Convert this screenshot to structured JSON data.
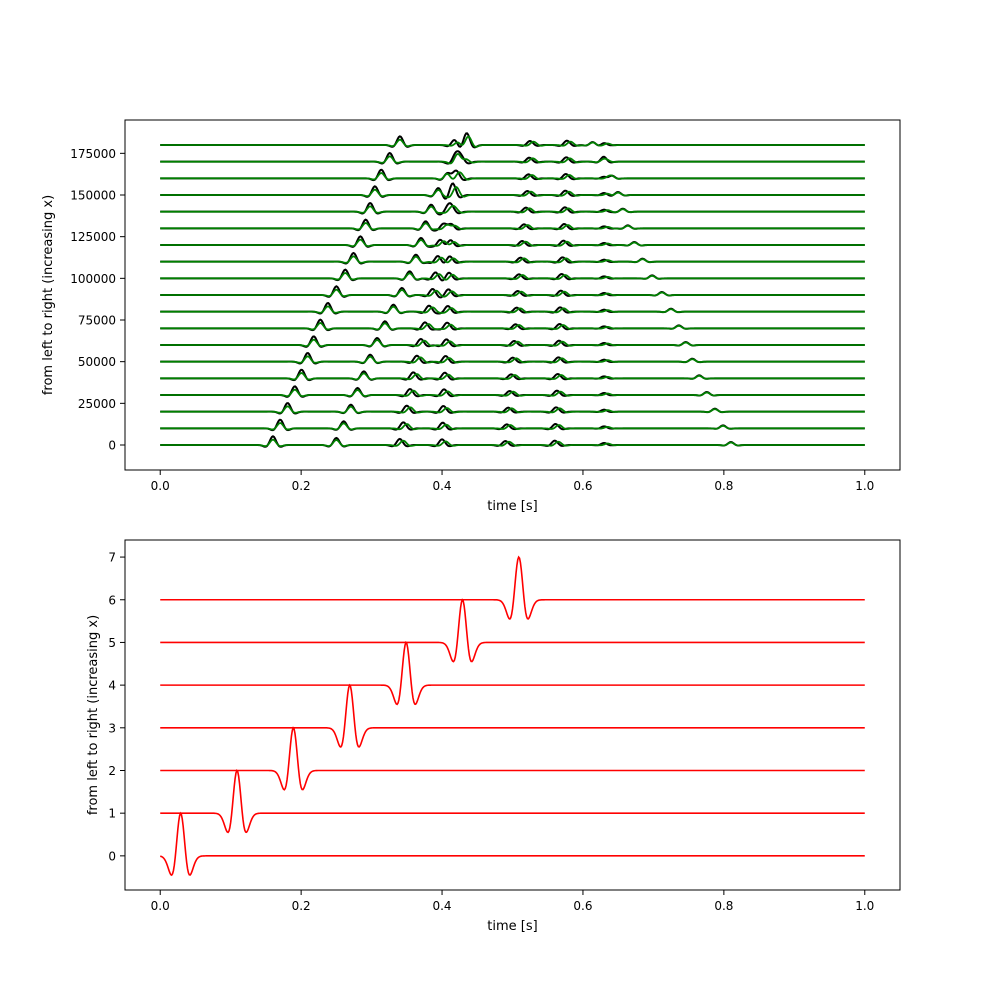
{
  "colors": {
    "observed": "#000000",
    "modeled": "#008000",
    "wavelet": "#ff0000"
  },
  "chart_data": [
    {
      "type": "line",
      "description_key": "seismic-traces",
      "xlabel": "time [s]",
      "ylabel": "from left to right (increasing x)",
      "xlim": [
        -0.05,
        1.05
      ],
      "ylim": [
        -15000,
        195000
      ],
      "xticks": [
        0.0,
        0.2,
        0.4,
        0.6,
        0.8,
        1.0
      ],
      "xtick_labels": [
        "0.0",
        "0.2",
        "0.4",
        "0.6",
        "0.8",
        "1.0"
      ],
      "yticks": [
        0,
        25000,
        50000,
        75000,
        100000,
        125000,
        150000,
        175000
      ],
      "ytick_labels": [
        "0",
        "25000",
        "50000",
        "75000",
        "100000",
        "125000",
        "150000",
        "175000"
      ],
      "trace_x_range": [
        0.0,
        1.0
      ],
      "trace_offsets": [
        0,
        10000,
        20000,
        30000,
        40000,
        50000,
        60000,
        70000,
        80000,
        90000,
        100000,
        110000,
        120000,
        130000,
        140000,
        150000,
        160000,
        170000,
        180000
      ],
      "series": [
        {
          "color_key": "observed",
          "arrivals": [
            {
              "t0": 0.16,
              "slope": 1e-06,
              "amp": 5200,
              "width": 0.01
            },
            {
              "t0": 0.25,
              "slope": 1e-06,
              "amp": 4200,
              "width": 0.01
            },
            {
              "t0": 0.34,
              "slope": 5e-07,
              "amp": 3600,
              "width": 0.01
            },
            {
              "t0": 0.4,
              "slope": 1e-07,
              "amp": 3400,
              "width": 0.01
            },
            {
              "t0": 0.49,
              "slope": 2e-07,
              "amp": 2400,
              "width": 0.01
            },
            {
              "t0": 0.56,
              "slope": 1e-07,
              "amp": 2600,
              "width": 0.01
            },
            {
              "t0": 0.81,
              "slope": -1.1e-06,
              "amp": 1800,
              "width": 0.009
            },
            {
              "t0": 0.63,
              "slope": 0.0,
              "amp": 1200,
              "width": 0.009
            }
          ]
        },
        {
          "color_key": "modeled",
          "arrivals": [
            {
              "t0": 0.16,
              "slope": 1e-06,
              "amp": 3200,
              "width": 0.01
            },
            {
              "t0": 0.25,
              "slope": 1e-06,
              "amp": 3000,
              "width": 0.01
            },
            {
              "t0": 0.345,
              "slope": 5e-07,
              "amp": 2600,
              "width": 0.01
            },
            {
              "t0": 0.405,
              "slope": 1e-07,
              "amp": 2200,
              "width": 0.01
            },
            {
              "t0": 0.495,
              "slope": 2e-07,
              "amp": 2000,
              "width": 0.01
            },
            {
              "t0": 0.565,
              "slope": 1e-07,
              "amp": 2000,
              "width": 0.01
            },
            {
              "t0": 0.81,
              "slope": -1.1e-06,
              "amp": 1500,
              "width": 0.009
            },
            {
              "t0": 0.635,
              "slope": 0.0,
              "amp": 900,
              "width": 0.009
            }
          ]
        }
      ]
    },
    {
      "type": "line",
      "description_key": "source-wavelets",
      "xlabel": "time [s]",
      "ylabel": "from left to right (increasing x)",
      "xlim": [
        -0.05,
        1.05
      ],
      "ylim": [
        -0.8,
        7.4
      ],
      "xticks": [
        0.0,
        0.2,
        0.4,
        0.6,
        0.8,
        1.0
      ],
      "xtick_labels": [
        "0.0",
        "0.2",
        "0.4",
        "0.6",
        "0.8",
        "1.0"
      ],
      "yticks": [
        0,
        1,
        2,
        3,
        4,
        5,
        6,
        7
      ],
      "ytick_labels": [
        "0",
        "1",
        "2",
        "3",
        "4",
        "5",
        "6",
        "7"
      ],
      "trace_x_range": [
        0.0,
        1.0
      ],
      "series": [
        {
          "color_key": "wavelet",
          "offset": 0,
          "center": 0.029,
          "peak": 1.0,
          "trough": -0.45
        },
        {
          "color_key": "wavelet",
          "offset": 1,
          "center": 0.109,
          "peak": 1.0,
          "trough": -0.45
        },
        {
          "color_key": "wavelet",
          "offset": 2,
          "center": 0.189,
          "peak": 1.0,
          "trough": -0.45
        },
        {
          "color_key": "wavelet",
          "offset": 3,
          "center": 0.269,
          "peak": 1.0,
          "trough": -0.45
        },
        {
          "color_key": "wavelet",
          "offset": 4,
          "center": 0.349,
          "peak": 1.0,
          "trough": -0.45
        },
        {
          "color_key": "wavelet",
          "offset": 5,
          "center": 0.429,
          "peak": 1.0,
          "trough": -0.45
        },
        {
          "color_key": "wavelet",
          "offset": 6,
          "center": 0.509,
          "peak": 1.0,
          "trough": -0.45
        }
      ]
    }
  ]
}
